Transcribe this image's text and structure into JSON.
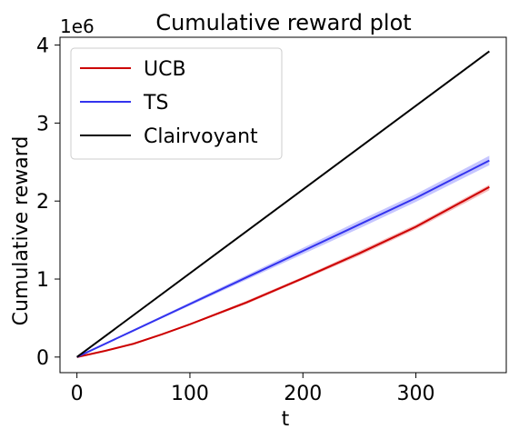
{
  "chart_data": {
    "type": "line",
    "title": "Cumulative reward plot",
    "xlabel": "t",
    "ylabel": "Cumulative reward",
    "offset_label": "1e6",
    "xlim": [
      -15,
      380
    ],
    "ylim": [
      -0.2,
      4.1
    ],
    "xticks": [
      0,
      100,
      200,
      300
    ],
    "yticks": [
      0,
      1,
      2,
      3,
      4
    ],
    "legend": {
      "position": "top-left"
    },
    "grid": false,
    "series": [
      {
        "name": "UCB",
        "color": "#cc0000",
        "band_color": "#ee6666",
        "x": [
          0,
          25,
          50,
          75,
          100,
          150,
          200,
          250,
          300,
          365
        ],
        "y": [
          0,
          0.08,
          0.17,
          0.29,
          0.42,
          0.7,
          1.01,
          1.33,
          1.67,
          2.18
        ],
        "lower": [
          0,
          0.075,
          0.16,
          0.28,
          0.41,
          0.68,
          0.99,
          1.3,
          1.64,
          2.14
        ],
        "upper": [
          0,
          0.085,
          0.18,
          0.3,
          0.43,
          0.72,
          1.03,
          1.36,
          1.7,
          2.21
        ]
      },
      {
        "name": "TS",
        "color": "#3333ee",
        "band_color": "#8080ff",
        "x": [
          0,
          50,
          100,
          150,
          200,
          250,
          300,
          365
        ],
        "y": [
          0,
          0.34,
          0.68,
          1.02,
          1.36,
          1.7,
          2.04,
          2.52
        ],
        "lower": [
          0,
          0.33,
          0.66,
          0.99,
          1.32,
          1.65,
          1.99,
          2.46
        ],
        "upper": [
          0,
          0.35,
          0.7,
          1.05,
          1.4,
          1.75,
          2.09,
          2.58
        ]
      },
      {
        "name": "Clairvoyant",
        "color": "#000000",
        "x": [
          0,
          365
        ],
        "y": [
          0,
          3.92
        ]
      }
    ]
  }
}
